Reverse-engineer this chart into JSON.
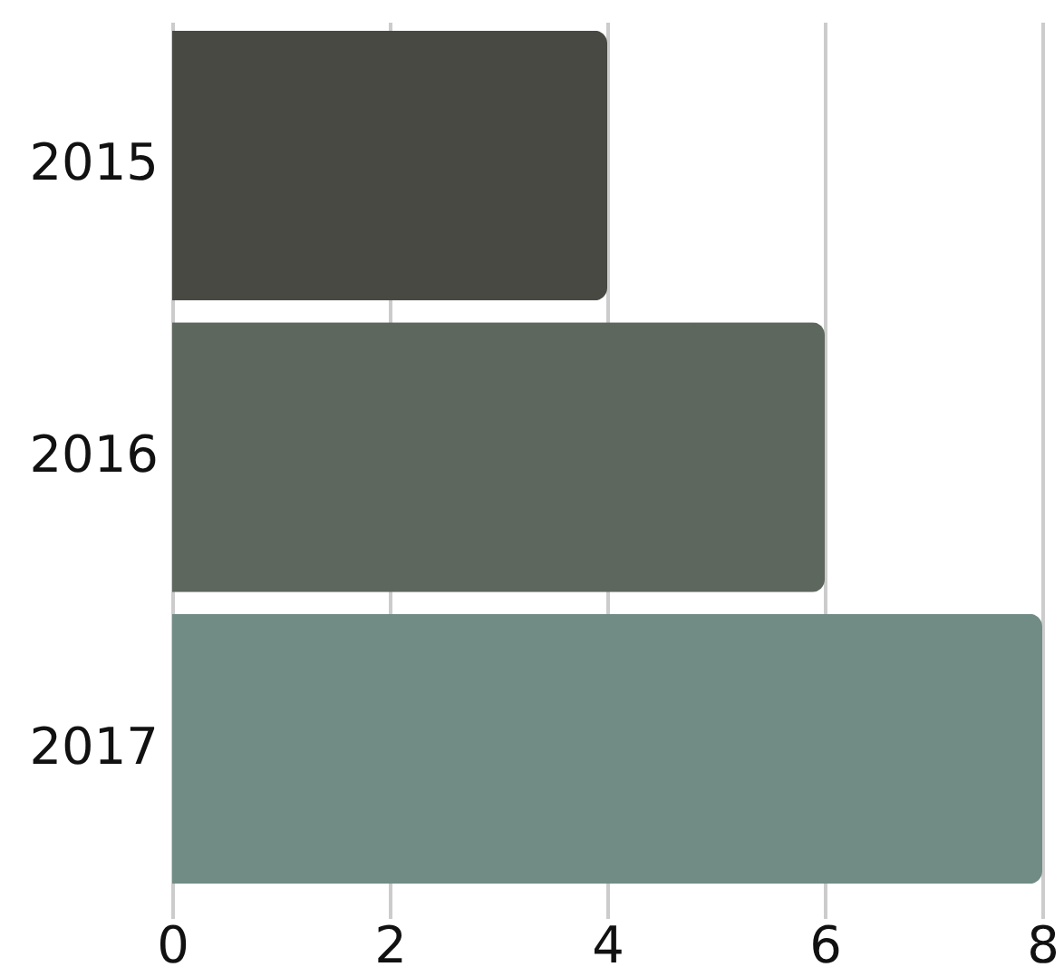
{
  "chart_data": {
    "type": "bar",
    "orientation": "horizontal",
    "categories": [
      "2015",
      "2016",
      "2017"
    ],
    "values": [
      4,
      6,
      8
    ],
    "colors": [
      "#484942",
      "#5d675d",
      "#718b85"
    ],
    "xlim": [
      0,
      8
    ],
    "xticks": [
      0,
      2,
      4,
      6,
      8
    ],
    "grid": "x"
  }
}
